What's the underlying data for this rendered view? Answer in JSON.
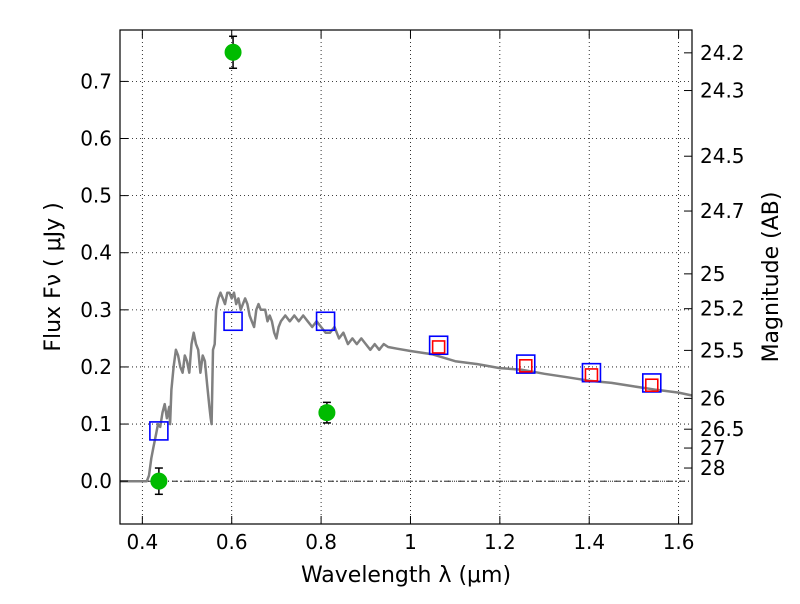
{
  "chart_data": {
    "type": "scatter",
    "title": "",
    "xlabel": "Wavelength  λ (μm)",
    "ylabel": "Flux  Fν  ( μJy )",
    "y2label": "Magnitude (AB)",
    "xlim": [
      0.35,
      1.63
    ],
    "ylim": [
      -0.075,
      0.79
    ],
    "grid": true,
    "xticks": [
      0.4,
      0.6,
      0.8,
      1.0,
      1.2,
      1.4,
      1.6
    ],
    "xtick_labels": [
      "0.4",
      "0.6",
      "0.8",
      "1",
      "1.2",
      "1.4",
      "1.6"
    ],
    "yticks": [
      0.0,
      0.1,
      0.2,
      0.3,
      0.4,
      0.5,
      0.6,
      0.7
    ],
    "ytick_labels": [
      "0.0",
      "0.1",
      "0.2",
      "0.3",
      "0.4",
      "0.5",
      "0.6",
      "0.7"
    ],
    "y2ticks": [
      {
        "label": "24.2",
        "flux": 0.75
      },
      {
        "label": "24.3",
        "flux": 0.684
      },
      {
        "label": "24.5",
        "flux": 0.569
      },
      {
        "label": "24.7",
        "flux": 0.473
      },
      {
        "label": "25",
        "flux": 0.363
      },
      {
        "label": "25.2",
        "flux": 0.302
      },
      {
        "label": "25.5",
        "flux": 0.229
      },
      {
        "label": "26",
        "flux": 0.145
      },
      {
        "label": "26.5",
        "flux": 0.091
      },
      {
        "label": "27",
        "flux": 0.058
      },
      {
        "label": "28",
        "flux": 0.023
      }
    ],
    "series": [
      {
        "marker": "line",
        "color": "#808080",
        "points": [
          [
            0.35,
            0.0
          ],
          [
            0.41,
            0.0
          ],
          [
            0.415,
            0.01
          ],
          [
            0.42,
            0.04
          ],
          [
            0.425,
            0.06
          ],
          [
            0.43,
            0.08
          ],
          [
            0.435,
            0.1
          ],
          [
            0.44,
            0.095
          ],
          [
            0.445,
            0.12
          ],
          [
            0.45,
            0.135
          ],
          [
            0.455,
            0.11
          ],
          [
            0.46,
            0.13
          ],
          [
            0.462,
            0.1
          ],
          [
            0.465,
            0.16
          ],
          [
            0.47,
            0.2
          ],
          [
            0.475,
            0.23
          ],
          [
            0.48,
            0.22
          ],
          [
            0.485,
            0.2
          ],
          [
            0.49,
            0.19
          ],
          [
            0.495,
            0.22
          ],
          [
            0.5,
            0.21
          ],
          [
            0.505,
            0.19
          ],
          [
            0.51,
            0.24
          ],
          [
            0.515,
            0.26
          ],
          [
            0.52,
            0.24
          ],
          [
            0.525,
            0.23
          ],
          [
            0.53,
            0.19
          ],
          [
            0.535,
            0.22
          ],
          [
            0.54,
            0.21
          ],
          [
            0.545,
            0.17
          ],
          [
            0.55,
            0.13
          ],
          [
            0.553,
            0.11
          ],
          [
            0.555,
            0.1
          ],
          [
            0.558,
            0.23
          ],
          [
            0.562,
            0.24
          ],
          [
            0.565,
            0.3
          ],
          [
            0.57,
            0.32
          ],
          [
            0.575,
            0.33
          ],
          [
            0.58,
            0.32
          ],
          [
            0.585,
            0.31
          ],
          [
            0.59,
            0.33
          ],
          [
            0.595,
            0.33
          ],
          [
            0.6,
            0.32
          ],
          [
            0.605,
            0.33
          ],
          [
            0.61,
            0.31
          ],
          [
            0.615,
            0.32
          ],
          [
            0.62,
            0.3
          ],
          [
            0.625,
            0.31
          ],
          [
            0.63,
            0.32
          ],
          [
            0.635,
            0.31
          ],
          [
            0.64,
            0.29
          ],
          [
            0.645,
            0.28
          ],
          [
            0.65,
            0.27
          ],
          [
            0.655,
            0.3
          ],
          [
            0.66,
            0.31
          ],
          [
            0.665,
            0.3
          ],
          [
            0.67,
            0.3
          ],
          [
            0.675,
            0.3
          ],
          [
            0.68,
            0.28
          ],
          [
            0.685,
            0.29
          ],
          [
            0.69,
            0.28
          ],
          [
            0.695,
            0.26
          ],
          [
            0.7,
            0.25
          ],
          [
            0.705,
            0.27
          ],
          [
            0.71,
            0.28
          ],
          [
            0.72,
            0.29
          ],
          [
            0.73,
            0.28
          ],
          [
            0.74,
            0.29
          ],
          [
            0.75,
            0.28
          ],
          [
            0.76,
            0.29
          ],
          [
            0.77,
            0.28
          ],
          [
            0.78,
            0.27
          ],
          [
            0.79,
            0.28
          ],
          [
            0.8,
            0.27
          ],
          [
            0.81,
            0.26
          ],
          [
            0.82,
            0.26
          ],
          [
            0.83,
            0.27
          ],
          [
            0.84,
            0.25
          ],
          [
            0.85,
            0.26
          ],
          [
            0.86,
            0.24
          ],
          [
            0.87,
            0.25
          ],
          [
            0.88,
            0.24
          ],
          [
            0.89,
            0.25
          ],
          [
            0.9,
            0.24
          ],
          [
            0.91,
            0.23
          ],
          [
            0.92,
            0.24
          ],
          [
            0.93,
            0.23
          ],
          [
            0.94,
            0.24
          ],
          [
            0.95,
            0.235
          ],
          [
            0.97,
            0.232
          ],
          [
            1.0,
            0.228
          ],
          [
            1.05,
            0.222
          ],
          [
            1.1,
            0.21
          ],
          [
            1.15,
            0.205
          ],
          [
            1.2,
            0.198
          ],
          [
            1.25,
            0.195
          ],
          [
            1.3,
            0.188
          ],
          [
            1.35,
            0.182
          ],
          [
            1.4,
            0.176
          ],
          [
            1.45,
            0.172
          ],
          [
            1.5,
            0.166
          ],
          [
            1.55,
            0.16
          ],
          [
            1.6,
            0.155
          ],
          [
            1.63,
            0.15
          ]
        ]
      },
      {
        "marker": "open-square",
        "color": "#0000ff",
        "points": [
          [
            0.437,
            0.088
          ],
          [
            0.603,
            0.28
          ],
          [
            0.81,
            0.28
          ],
          [
            1.063,
            0.238
          ],
          [
            1.258,
            0.205
          ],
          [
            1.405,
            0.19
          ],
          [
            1.54,
            0.172
          ]
        ]
      },
      {
        "marker": "open-square-small",
        "color": "#ff0000",
        "points": [
          [
            1.063,
            0.235
          ],
          [
            1.258,
            0.202
          ],
          [
            1.405,
            0.186
          ],
          [
            1.54,
            0.168
          ]
        ]
      },
      {
        "marker": "filled-circle",
        "color": "#00bb00",
        "points": [
          {
            "x": 0.437,
            "y": 0.0,
            "err": 0.023
          },
          {
            "x": 0.603,
            "y": 0.751,
            "err": 0.028
          },
          {
            "x": 0.813,
            "y": 0.12,
            "err": 0.018
          }
        ]
      }
    ]
  }
}
